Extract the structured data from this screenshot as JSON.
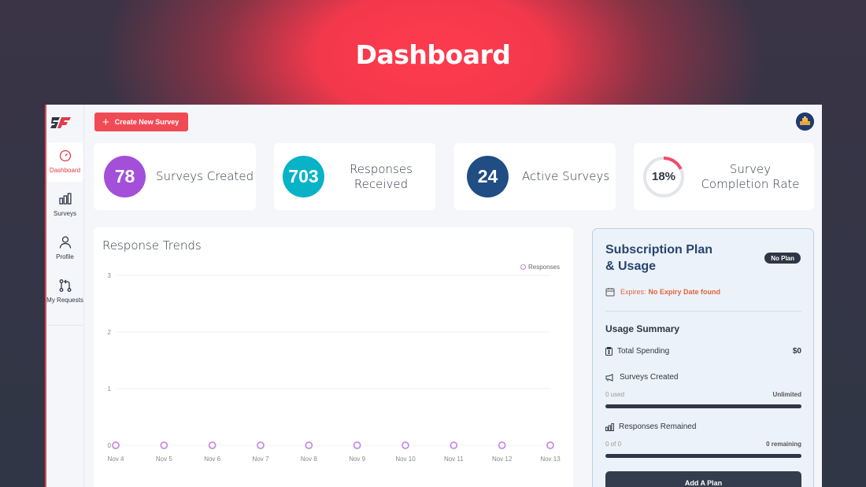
{
  "hero": {
    "title": "Dashboard"
  },
  "sidebar": {
    "items": [
      {
        "label": "Dashboard",
        "icon": "gauge-icon"
      },
      {
        "label": "Surveys",
        "icon": "bar-chart-icon"
      },
      {
        "label": "Profile",
        "icon": "user-icon"
      },
      {
        "label": "My Requests",
        "icon": "git-pull-request-icon"
      }
    ]
  },
  "topbar": {
    "create_label": "Create New Survey"
  },
  "stats": [
    {
      "value": "78",
      "label": "Surveys Created",
      "color": "#a34fd9"
    },
    {
      "value": "703",
      "label": "Responses Received",
      "color": "#08b3c7"
    },
    {
      "value": "24",
      "label": "Active Surveys",
      "color": "#1f4d84"
    },
    {
      "value": "18%",
      "label": "Survey Completion Rate",
      "percent": 18,
      "color": "#f04b6a"
    }
  ],
  "chart": {
    "title": "Response Trends",
    "legend": "Responses"
  },
  "chart_data": {
    "type": "line",
    "title": "Response Trends",
    "categories": [
      "Nov 4",
      "Nov 5",
      "Nov 6",
      "Nov 7",
      "Nov 8",
      "Nov 9",
      "Nov 10",
      "Nov 11",
      "Nov 12",
      "Nov 13"
    ],
    "series": [
      {
        "name": "Responses",
        "values": [
          0,
          0,
          0,
          0,
          0,
          0,
          0,
          0,
          0,
          0
        ]
      }
    ],
    "ylim": [
      0,
      3
    ],
    "yticks": [
      "0",
      "1",
      "2",
      "3"
    ],
    "grid": true,
    "legend_position": "top-right"
  },
  "subscription": {
    "title": "Subscription Plan & Usage",
    "badge": "No Plan",
    "expires_label": "Expires:",
    "expires_value": "No Expiry Date found",
    "usage_title": "Usage Summary",
    "total_spending_label": "Total Spending",
    "total_spending_value": "$0",
    "surveys_created_label": "Surveys Created",
    "surveys_used": "0 used",
    "surveys_limit": "Unlimited",
    "responses_label": "Responses Remained",
    "responses_used": "0 of 0",
    "responses_remaining": "0 remaining",
    "add_plan_label": "Add A Plan"
  }
}
